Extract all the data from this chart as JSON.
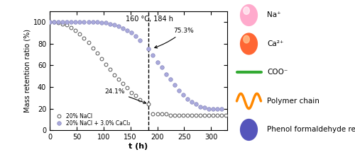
{
  "title_annotation": "160 °C, 184 h",
  "xlabel": "t (h)",
  "ylabel": "Mass retention ratio (%)",
  "xlim": [
    0,
    330
  ],
  "ylim": [
    0,
    110
  ],
  "yticks": [
    0,
    20,
    40,
    60,
    80,
    100
  ],
  "xticks": [
    0,
    50,
    100,
    150,
    200,
    250,
    300
  ],
  "vline_x": 184,
  "annotation_241": "24.1%",
  "annotation_753": "75.3%",
  "series1_label": "20% NaCl",
  "series2_label": "20% NaCl + 3.0% CaCl₂",
  "series1_color": "white",
  "series1_edgecolor": "#555555",
  "series2_color": "#aaaadd",
  "series2_edgecolor": "#8888bb",
  "legend_labels": [
    "Na⁺",
    "Ca²⁺",
    "COO⁻",
    "Polymer chain",
    "Phenol formaldehyde resin"
  ],
  "legend_symbol_colors": [
    "#ff99bb",
    "#ff6633",
    "#33aa44",
    "#ff8800",
    "#6666cc"
  ],
  "series1_x": [
    0,
    8,
    16,
    24,
    32,
    40,
    48,
    56,
    64,
    72,
    80,
    88,
    96,
    104,
    112,
    120,
    128,
    136,
    144,
    152,
    160,
    168,
    184,
    192,
    200,
    208,
    216,
    224,
    232,
    240,
    248,
    256,
    264,
    272,
    280,
    288,
    296,
    304,
    312,
    320,
    328
  ],
  "series1_y": [
    100,
    100,
    99,
    98,
    97,
    95,
    92,
    89,
    85,
    81,
    76,
    71,
    66,
    61,
    56,
    51,
    47,
    43,
    39,
    35,
    32,
    28,
    24,
    15,
    15,
    15,
    15,
    14,
    14,
    14,
    14,
    14,
    14,
    14,
    14,
    14,
    14,
    14,
    14,
    14,
    14
  ],
  "series2_x": [
    0,
    8,
    16,
    24,
    32,
    40,
    48,
    56,
    64,
    72,
    80,
    88,
    96,
    104,
    112,
    120,
    128,
    136,
    144,
    152,
    160,
    168,
    184,
    192,
    200,
    208,
    216,
    224,
    232,
    240,
    248,
    256,
    264,
    272,
    280,
    288,
    296,
    304,
    312,
    320
  ],
  "series2_y": [
    100,
    100,
    100,
    100,
    100,
    100,
    100,
    100,
    100,
    100,
    100,
    100,
    99,
    99,
    98,
    97,
    96,
    94,
    92,
    90,
    87,
    83,
    75,
    69,
    63,
    58,
    52,
    47,
    42,
    37,
    33,
    29,
    26,
    24,
    22,
    21,
    20,
    20,
    20,
    20
  ]
}
